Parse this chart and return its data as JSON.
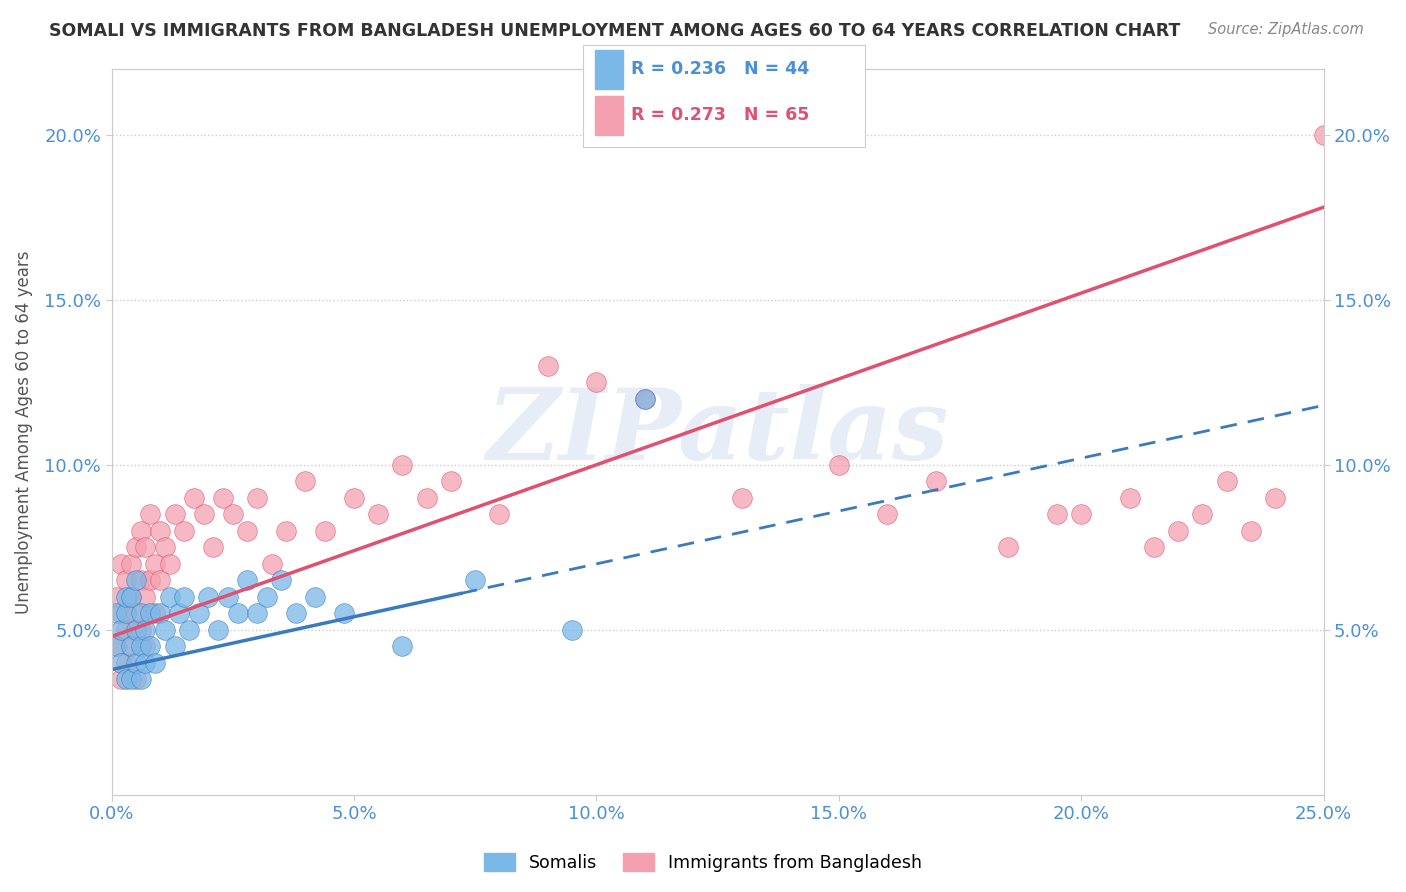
{
  "title": "SOMALI VS IMMIGRANTS FROM BANGLADESH UNEMPLOYMENT AMONG AGES 60 TO 64 YEARS CORRELATION CHART",
  "source": "Source: ZipAtlas.com",
  "ylabel": "Unemployment Among Ages 60 to 64 years",
  "xlim": [
    0.0,
    0.25
  ],
  "ylim": [
    0.0,
    0.22
  ],
  "xticks": [
    0.0,
    0.05,
    0.1,
    0.15,
    0.2,
    0.25
  ],
  "xtick_labels": [
    "0.0%",
    "5.0%",
    "10.0%",
    "15.0%",
    "20.0%",
    "25.0%"
  ],
  "yticks": [
    0.05,
    0.1,
    0.15,
    0.2
  ],
  "ytick_labels": [
    "5.0%",
    "10.0%",
    "15.0%",
    "20.0%"
  ],
  "somali_color": "#7ab8e8",
  "bangladesh_color": "#f4a0b0",
  "somali_line_color": "#3a7bbf",
  "bangladesh_line_color": "#e05070",
  "somali_R": 0.236,
  "somali_N": 44,
  "bangladesh_R": 0.273,
  "bangladesh_N": 65,
  "background_color": "#ffffff",
  "watermark": "ZIPatlas",
  "somali_x": [
    0.001,
    0.001,
    0.002,
    0.002,
    0.003,
    0.003,
    0.003,
    0.004,
    0.004,
    0.004,
    0.005,
    0.005,
    0.005,
    0.006,
    0.006,
    0.006,
    0.007,
    0.007,
    0.008,
    0.008,
    0.009,
    0.01,
    0.011,
    0.012,
    0.013,
    0.014,
    0.015,
    0.016,
    0.018,
    0.02,
    0.022,
    0.024,
    0.026,
    0.028,
    0.03,
    0.032,
    0.035,
    0.038,
    0.042,
    0.048,
    0.06,
    0.075,
    0.095,
    0.11
  ],
  "somali_y": [
    0.055,
    0.045,
    0.05,
    0.04,
    0.055,
    0.035,
    0.06,
    0.045,
    0.035,
    0.06,
    0.04,
    0.05,
    0.065,
    0.035,
    0.055,
    0.045,
    0.05,
    0.04,
    0.055,
    0.045,
    0.04,
    0.055,
    0.05,
    0.06,
    0.045,
    0.055,
    0.06,
    0.05,
    0.055,
    0.06,
    0.05,
    0.06,
    0.055,
    0.065,
    0.055,
    0.06,
    0.065,
    0.055,
    0.06,
    0.055,
    0.045,
    0.065,
    0.05,
    0.12
  ],
  "bangladesh_x": [
    0.001,
    0.001,
    0.002,
    0.002,
    0.002,
    0.003,
    0.003,
    0.003,
    0.004,
    0.004,
    0.004,
    0.005,
    0.005,
    0.005,
    0.006,
    0.006,
    0.006,
    0.007,
    0.007,
    0.007,
    0.008,
    0.008,
    0.009,
    0.009,
    0.01,
    0.01,
    0.011,
    0.012,
    0.013,
    0.015,
    0.017,
    0.019,
    0.021,
    0.023,
    0.025,
    0.028,
    0.03,
    0.033,
    0.036,
    0.04,
    0.044,
    0.05,
    0.055,
    0.06,
    0.065,
    0.07,
    0.08,
    0.09,
    0.1,
    0.11,
    0.13,
    0.15,
    0.16,
    0.17,
    0.185,
    0.195,
    0.2,
    0.21,
    0.215,
    0.22,
    0.225,
    0.23,
    0.235,
    0.24,
    0.25
  ],
  "bangladesh_y": [
    0.06,
    0.045,
    0.055,
    0.035,
    0.07,
    0.05,
    0.04,
    0.065,
    0.045,
    0.06,
    0.07,
    0.035,
    0.055,
    0.075,
    0.065,
    0.05,
    0.08,
    0.06,
    0.045,
    0.075,
    0.065,
    0.085,
    0.055,
    0.07,
    0.08,
    0.065,
    0.075,
    0.07,
    0.085,
    0.08,
    0.09,
    0.085,
    0.075,
    0.09,
    0.085,
    0.08,
    0.09,
    0.07,
    0.08,
    0.095,
    0.08,
    0.09,
    0.085,
    0.1,
    0.09,
    0.095,
    0.085,
    0.13,
    0.125,
    0.12,
    0.09,
    0.1,
    0.085,
    0.095,
    0.075,
    0.085,
    0.085,
    0.09,
    0.075,
    0.08,
    0.085,
    0.095,
    0.08,
    0.09,
    0.2
  ],
  "somali_line_x0": 0.0,
  "somali_line_x_solid_end": 0.072,
  "somali_line_x_dash_end": 0.25,
  "somali_line_y0": 0.038,
  "somali_line_slope": 0.32,
  "bangladesh_line_x0": 0.0,
  "bangladesh_line_x_solid_end": 0.25,
  "bangladesh_line_y0": 0.048,
  "bangladesh_line_slope": 0.52
}
